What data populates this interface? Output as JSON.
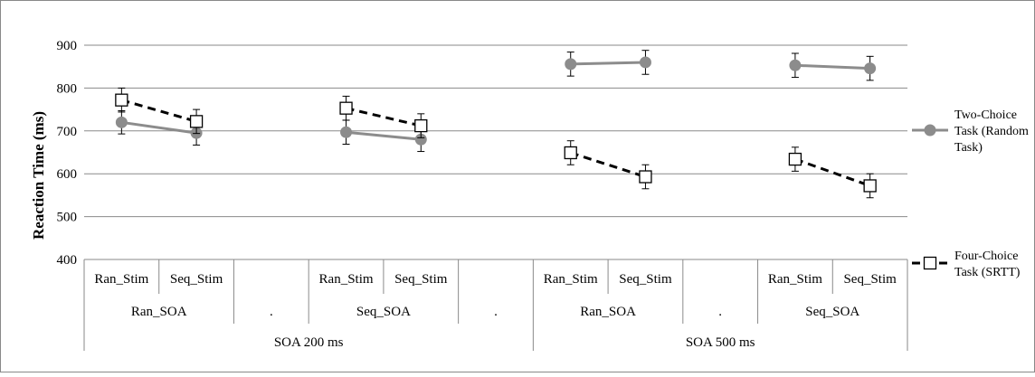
{
  "chart_data": {
    "type": "line",
    "ylabel": "Reaction Time (ms)",
    "ylim": [
      400,
      900
    ],
    "yticks": [
      400,
      500,
      600,
      700,
      800,
      900
    ],
    "grid": true,
    "legend_position": "right",
    "categories": [
      {
        "level1": "Ran_Stim",
        "level2": "Ran_SOA",
        "level3": "SOA 200 ms"
      },
      {
        "level1": "Seq_Stim",
        "level2": "Ran_SOA",
        "level3": "SOA 200 ms"
      },
      {
        "level1": "",
        "level2": ".",
        "level3": "SOA 200 ms"
      },
      {
        "level1": "Ran_Stim",
        "level2": "Seq_SOA",
        "level3": "SOA 200 ms"
      },
      {
        "level1": "Seq_Stim",
        "level2": "Seq_SOA",
        "level3": "SOA 200 ms"
      },
      {
        "level1": "",
        "level2": ".",
        "level3": "SOA 200 ms"
      },
      {
        "level1": "Ran_Stim",
        "level2": "Ran_SOA",
        "level3": "SOA 500 ms"
      },
      {
        "level1": "Seq_Stim",
        "level2": "Ran_SOA",
        "level3": "SOA 500 ms"
      },
      {
        "level1": "",
        "level2": ".",
        "level3": "SOA 500 ms"
      },
      {
        "level1": "Ran_Stim",
        "level2": "Seq_SOA",
        "level3": "SOA 500 ms"
      },
      {
        "level1": "Seq_Stim",
        "level2": "Seq_SOA",
        "level3": "SOA 500 ms"
      }
    ],
    "level2_groups": [
      {
        "label": "Ran_SOA",
        "start": 0,
        "end": 2
      },
      {
        "label": ".",
        "start": 2,
        "end": 3
      },
      {
        "label": "Seq_SOA",
        "start": 3,
        "end": 5
      },
      {
        "label": ".",
        "start": 5,
        "end": 6
      },
      {
        "label": "Ran_SOA",
        "start": 6,
        "end": 8
      },
      {
        "label": ".",
        "start": 8,
        "end": 9
      },
      {
        "label": "Seq_SOA",
        "start": 9,
        "end": 11
      }
    ],
    "level3_groups": [
      {
        "label": "SOA 200 ms",
        "start": 0,
        "end": 6
      },
      {
        "label": "SOA 500 ms",
        "start": 6,
        "end": 11
      }
    ],
    "series": [
      {
        "name": "Two-Choice Task (Random Task)",
        "legend_lines": [
          "Two-Choice",
          "Task (Random",
          "Task)"
        ],
        "color": "#8c8c8c",
        "line_style": "solid",
        "marker": "circle",
        "segments": [
          {
            "points": [
              {
                "x": 0,
                "y": 720,
                "err": 27
              },
              {
                "x": 1,
                "y": 695,
                "err": 28
              }
            ]
          },
          {
            "points": [
              {
                "x": 3,
                "y": 697,
                "err": 28
              },
              {
                "x": 4,
                "y": 680,
                "err": 28
              }
            ]
          },
          {
            "points": [
              {
                "x": 6,
                "y": 856,
                "err": 28
              },
              {
                "x": 7,
                "y": 860,
                "err": 28
              }
            ]
          },
          {
            "points": [
              {
                "x": 9,
                "y": 853,
                "err": 28
              },
              {
                "x": 10,
                "y": 846,
                "err": 28
              }
            ]
          }
        ]
      },
      {
        "name": "Four-Choice Task (SRTT)",
        "legend_lines": [
          "Four-Choice",
          "Task (SRTT)"
        ],
        "color": "#000000",
        "line_style": "dashed",
        "marker": "square",
        "segments": [
          {
            "points": [
              {
                "x": 0,
                "y": 772,
                "err": 28
              },
              {
                "x": 1,
                "y": 722,
                "err": 28
              }
            ]
          },
          {
            "points": [
              {
                "x": 3,
                "y": 753,
                "err": 28
              },
              {
                "x": 4,
                "y": 712,
                "err": 28
              }
            ]
          },
          {
            "points": [
              {
                "x": 6,
                "y": 649,
                "err": 28
              },
              {
                "x": 7,
                "y": 593,
                "err": 28
              }
            ]
          },
          {
            "points": [
              {
                "x": 9,
                "y": 634,
                "err": 28
              },
              {
                "x": 10,
                "y": 572,
                "err": 28
              }
            ]
          }
        ]
      }
    ]
  }
}
